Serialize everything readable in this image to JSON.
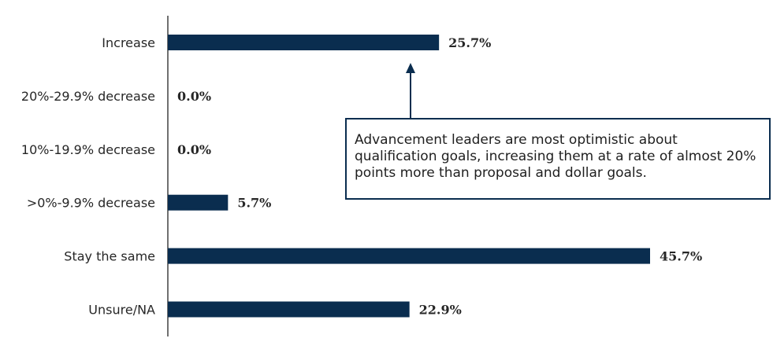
{
  "chart_data": {
    "type": "bar",
    "orientation": "horizontal",
    "categories": [
      "Increase",
      "20%-29.9% decrease",
      "10%-19.9% decrease",
      ">0%-9.9% decrease",
      "Stay the same",
      "Unsure/NA"
    ],
    "values": [
      25.7,
      0.0,
      0.0,
      5.7,
      45.7,
      22.9
    ],
    "value_labels": [
      "25.7%",
      "0.0%",
      "0.0%",
      "5.7%",
      "45.7%",
      "22.9%"
    ],
    "title": "",
    "xlabel": "",
    "ylabel": "",
    "xlim": [
      0,
      50
    ],
    "grid": false,
    "bar_color": "#0a2d4f",
    "annotation": {
      "text": "Advancement leaders are most optimistic about qualification goals, increasing them at a rate of almost 20% points more than proposal and dollar goals.",
      "points_to": "Increase",
      "border_color": "#0a2d4f"
    }
  }
}
